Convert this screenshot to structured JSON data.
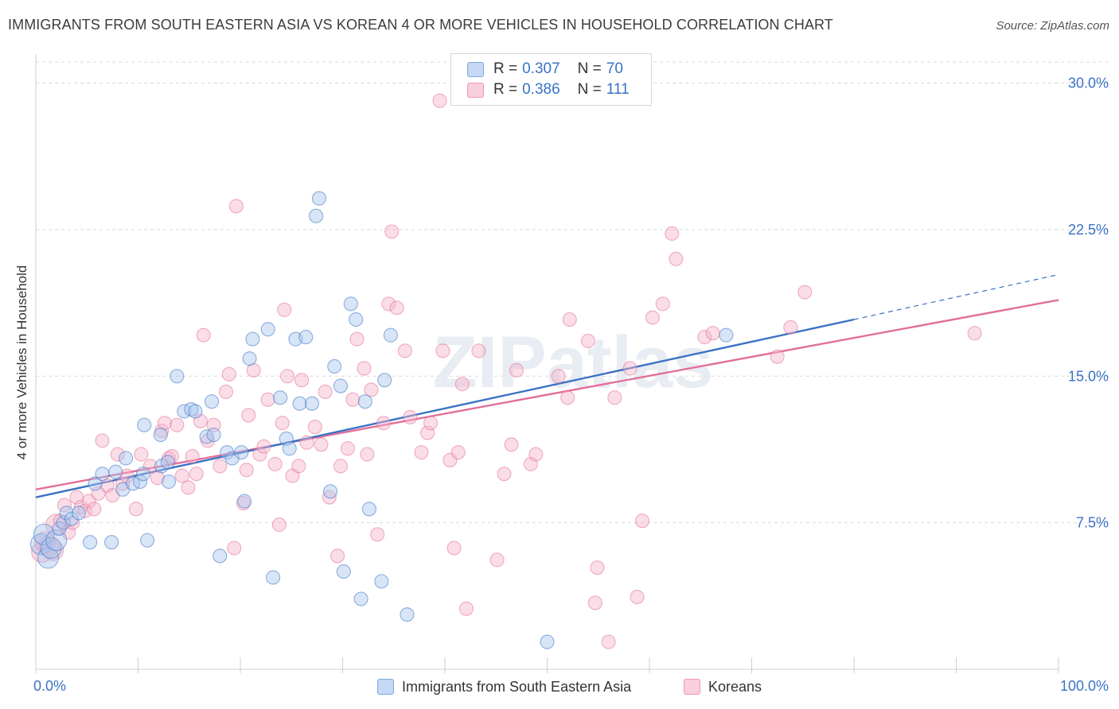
{
  "title": "IMMIGRANTS FROM SOUTH EASTERN ASIA VS KOREAN 4 OR MORE VEHICLES IN HOUSEHOLD CORRELATION CHART",
  "source": "Source: ZipAtlas.com",
  "watermark": "ZIPatlas",
  "colors": {
    "blue": "#3a72c4",
    "blue_fill": "#a9c5ee",
    "pink": "#e36f99",
    "pink_fill": "#f5b3c9",
    "grid": "#d9d9d9"
  },
  "legend": {
    "r_label": "R =",
    "n_label": "N =",
    "blue": {
      "r": "0.307",
      "n": "70"
    },
    "pink": {
      "r": "0.386",
      "n": "111"
    }
  },
  "chart_data": {
    "type": "scatter",
    "title": "IMMIGRANTS FROM SOUTH EASTERN ASIA VS KOREAN 4 OR MORE VEHICLES IN HOUSEHOLD CORRELATION CHART",
    "xlabel": "",
    "ylabel": "4 or more Vehicles in Household",
    "xlim": [
      0,
      100
    ],
    "ylim": [
      0,
      30
    ],
    "x_tick_labels": [
      "0.0%",
      "100.0%"
    ],
    "y_ticks": [
      7.5,
      15.0,
      22.5,
      30.0
    ],
    "y_tick_labels": [
      "7.5%",
      "15.0%",
      "22.5%",
      "30.0%"
    ],
    "grid": true,
    "legend_position": "top-center",
    "series": [
      {
        "name": "Immigrants from South Eastern Asia",
        "color": "#3a72c4",
        "fill": "#a9c5ee",
        "r": 0.307,
        "n": 70,
        "trend": {
          "x0": 0,
          "y0": 8.8,
          "x1": 80,
          "y1": 17.9
        },
        "trend_dashed_to": {
          "x": 100,
          "y": 20.2
        },
        "points": [
          [
            0.5,
            6.4
          ],
          [
            0.8,
            6.9
          ],
          [
            1.2,
            5.7
          ],
          [
            1.5,
            6.2
          ],
          [
            2.0,
            6.6
          ],
          [
            2.3,
            7.2
          ],
          [
            2.7,
            7.5
          ],
          [
            3.0,
            8.0
          ],
          [
            3.5,
            7.7
          ],
          [
            4.2,
            8.0
          ],
          [
            5.3,
            6.5
          ],
          [
            5.8,
            9.5
          ],
          [
            6.5,
            10.0
          ],
          [
            7.4,
            6.5
          ],
          [
            7.8,
            10.1
          ],
          [
            8.5,
            9.2
          ],
          [
            8.8,
            10.8
          ],
          [
            9.5,
            9.5
          ],
          [
            10.2,
            9.6
          ],
          [
            10.5,
            10.0
          ],
          [
            10.6,
            12.5
          ],
          [
            10.9,
            6.6
          ],
          [
            12.2,
            12.0
          ],
          [
            12.3,
            10.4
          ],
          [
            12.9,
            10.6
          ],
          [
            13.0,
            9.6
          ],
          [
            13.8,
            15.0
          ],
          [
            14.5,
            13.2
          ],
          [
            15.2,
            13.3
          ],
          [
            15.6,
            13.2
          ],
          [
            16.7,
            11.9
          ],
          [
            17.2,
            13.7
          ],
          [
            17.4,
            12.0
          ],
          [
            18.0,
            5.8
          ],
          [
            18.7,
            11.1
          ],
          [
            19.2,
            10.8
          ],
          [
            20.1,
            11.1
          ],
          [
            20.4,
            8.6
          ],
          [
            20.9,
            15.9
          ],
          [
            21.2,
            16.9
          ],
          [
            22.7,
            17.4
          ],
          [
            23.2,
            4.7
          ],
          [
            23.9,
            13.9
          ],
          [
            24.5,
            11.8
          ],
          [
            24.8,
            11.3
          ],
          [
            25.4,
            16.9
          ],
          [
            25.8,
            13.6
          ],
          [
            26.4,
            17.0
          ],
          [
            27.0,
            13.6
          ],
          [
            27.4,
            23.2
          ],
          [
            27.7,
            24.1
          ],
          [
            28.8,
            9.1
          ],
          [
            29.2,
            15.5
          ],
          [
            29.8,
            14.5
          ],
          [
            30.1,
            5.0
          ],
          [
            30.8,
            18.7
          ],
          [
            31.3,
            17.9
          ],
          [
            31.8,
            3.6
          ],
          [
            32.2,
            13.7
          ],
          [
            32.6,
            8.2
          ],
          [
            33.8,
            4.5
          ],
          [
            34.1,
            14.8
          ],
          [
            34.7,
            17.1
          ],
          [
            36.3,
            2.8
          ],
          [
            50.0,
            1.4
          ],
          [
            67.5,
            17.1
          ]
        ]
      },
      {
        "name": "Koreans",
        "color": "#e36f99",
        "fill": "#f5b3c9",
        "r": 0.386,
        "n": 111,
        "trend": {
          "x0": 0,
          "y0": 9.2,
          "x1": 100,
          "y1": 18.9
        },
        "points": [
          [
            0.6,
            6.0
          ],
          [
            0.9,
            6.5
          ],
          [
            1.3,
            6.3
          ],
          [
            1.7,
            6.1
          ],
          [
            2.0,
            7.4
          ],
          [
            2.4,
            7.6
          ],
          [
            2.8,
            8.4
          ],
          [
            3.2,
            7.0
          ],
          [
            3.6,
            7.5
          ],
          [
            4.0,
            8.8
          ],
          [
            4.4,
            8.3
          ],
          [
            4.8,
            8.1
          ],
          [
            5.2,
            8.6
          ],
          [
            5.7,
            8.2
          ],
          [
            6.1,
            9.0
          ],
          [
            6.5,
            11.7
          ],
          [
            7.0,
            9.4
          ],
          [
            7.5,
            8.9
          ],
          [
            8.0,
            11.0
          ],
          [
            8.5,
            9.5
          ],
          [
            8.9,
            9.9
          ],
          [
            9.8,
            8.2
          ],
          [
            10.3,
            11.0
          ],
          [
            11.2,
            10.4
          ],
          [
            11.9,
            9.8
          ],
          [
            12.3,
            12.2
          ],
          [
            12.6,
            12.6
          ],
          [
            13.0,
            10.8
          ],
          [
            13.3,
            10.9
          ],
          [
            13.8,
            12.5
          ],
          [
            14.3,
            9.9
          ],
          [
            14.9,
            9.3
          ],
          [
            15.3,
            10.9
          ],
          [
            15.7,
            10.0
          ],
          [
            16.1,
            12.7
          ],
          [
            16.4,
            17.1
          ],
          [
            16.8,
            11.7
          ],
          [
            17.4,
            12.5
          ],
          [
            18.0,
            10.4
          ],
          [
            18.6,
            14.2
          ],
          [
            18.9,
            15.1
          ],
          [
            19.4,
            6.2
          ],
          [
            19.6,
            23.7
          ],
          [
            20.3,
            8.5
          ],
          [
            20.6,
            10.2
          ],
          [
            20.8,
            13.0
          ],
          [
            21.3,
            15.3
          ],
          [
            21.9,
            11.0
          ],
          [
            22.3,
            11.4
          ],
          [
            22.7,
            13.8
          ],
          [
            23.4,
            10.5
          ],
          [
            23.8,
            7.4
          ],
          [
            24.1,
            12.6
          ],
          [
            24.3,
            18.4
          ],
          [
            24.6,
            15.0
          ],
          [
            25.1,
            9.9
          ],
          [
            25.7,
            10.4
          ],
          [
            26.0,
            14.8
          ],
          [
            26.5,
            11.6
          ],
          [
            27.3,
            12.4
          ],
          [
            27.9,
            11.5
          ],
          [
            28.3,
            14.2
          ],
          [
            28.7,
            8.8
          ],
          [
            29.5,
            5.8
          ],
          [
            29.8,
            10.4
          ],
          [
            30.5,
            11.3
          ],
          [
            31.0,
            13.8
          ],
          [
            31.4,
            16.9
          ],
          [
            32.1,
            15.4
          ],
          [
            32.4,
            11.0
          ],
          [
            32.8,
            14.3
          ],
          [
            33.4,
            6.9
          ],
          [
            34.0,
            12.6
          ],
          [
            34.5,
            18.7
          ],
          [
            34.8,
            22.4
          ],
          [
            35.3,
            18.5
          ],
          [
            36.1,
            16.3
          ],
          [
            36.6,
            12.9
          ],
          [
            37.7,
            11.1
          ],
          [
            38.3,
            12.1
          ],
          [
            38.6,
            12.6
          ],
          [
            39.5,
            29.1
          ],
          [
            39.8,
            16.3
          ],
          [
            40.5,
            10.7
          ],
          [
            40.9,
            6.2
          ],
          [
            41.3,
            11.1
          ],
          [
            41.7,
            14.6
          ],
          [
            42.1,
            3.1
          ],
          [
            43.3,
            16.3
          ],
          [
            45.1,
            5.6
          ],
          [
            45.8,
            10.0
          ],
          [
            46.5,
            11.5
          ],
          [
            47.0,
            15.3
          ],
          [
            48.4,
            10.5
          ],
          [
            48.9,
            11.0
          ],
          [
            51.1,
            15.0
          ],
          [
            52.0,
            13.9
          ],
          [
            52.2,
            17.9
          ],
          [
            54.0,
            16.8
          ],
          [
            54.7,
            3.4
          ],
          [
            54.9,
            5.2
          ],
          [
            56.0,
            1.4
          ],
          [
            56.6,
            13.9
          ],
          [
            58.1,
            15.4
          ],
          [
            58.8,
            3.7
          ],
          [
            59.3,
            7.6
          ],
          [
            60.3,
            18.0
          ],
          [
            61.3,
            18.7
          ],
          [
            62.2,
            22.3
          ],
          [
            62.6,
            21.0
          ],
          [
            65.4,
            17.0
          ],
          [
            66.2,
            17.2
          ],
          [
            72.5,
            16.0
          ],
          [
            73.8,
            17.5
          ],
          [
            75.2,
            19.3
          ],
          [
            91.8,
            17.2
          ]
        ]
      }
    ]
  },
  "bottom_legend": {
    "blue_label": "Immigrants from South Eastern Asia",
    "pink_label": "Koreans"
  }
}
